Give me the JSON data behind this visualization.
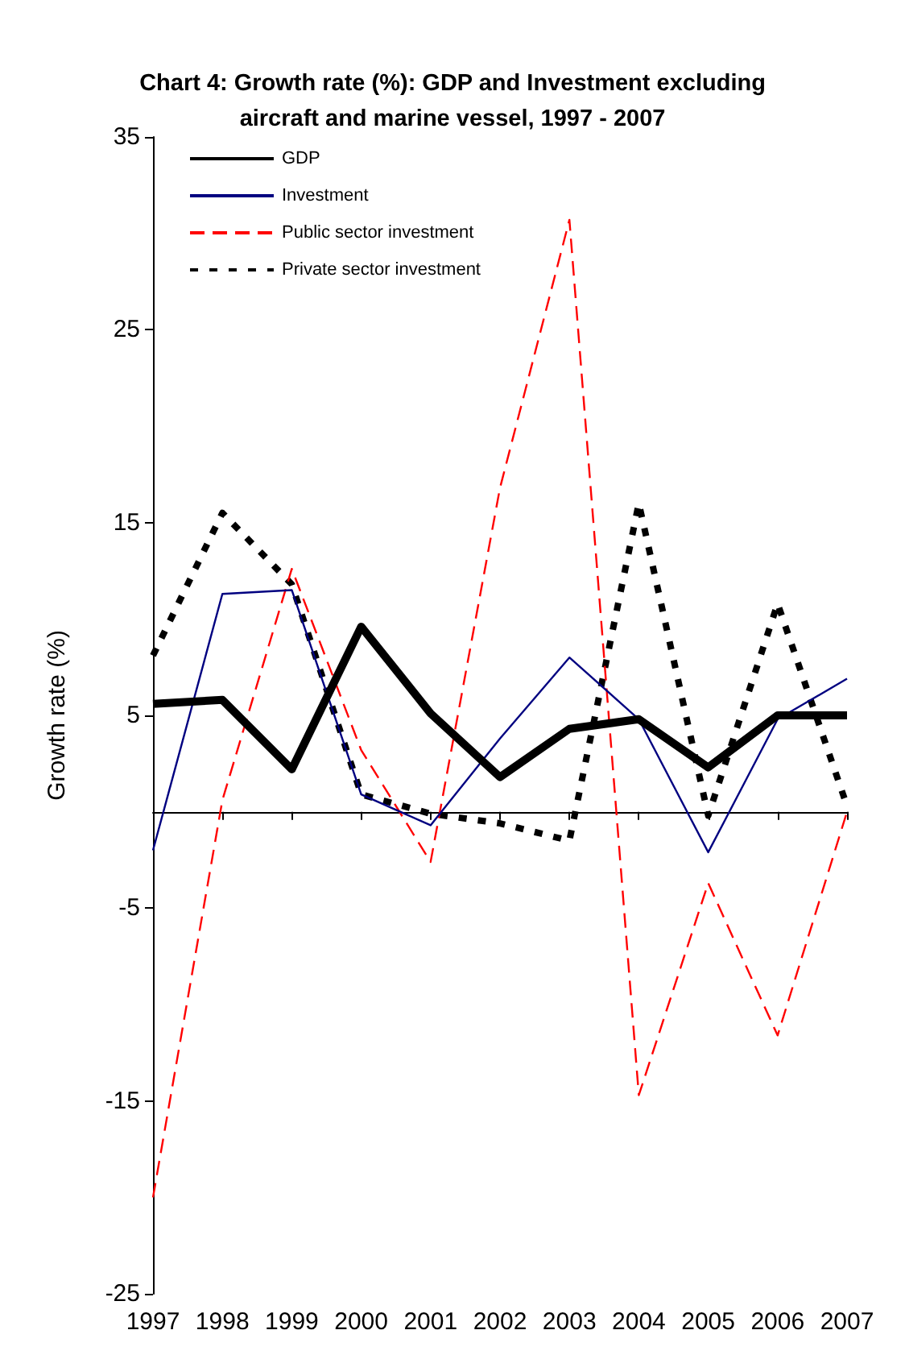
{
  "chart_data": {
    "type": "line",
    "title": "Chart 4: Growth rate (%): GDP and Investment excluding\naircraft and marine vessel, 1997 - 2007",
    "ylabel": "Growth rate (%)",
    "categories": [
      "1997",
      "1998",
      "1999",
      "2000",
      "2001",
      "2002",
      "2003",
      "2004",
      "2005",
      "2006",
      "2007"
    ],
    "series": [
      {
        "name": "GDP",
        "color": "#000000",
        "line_style": "solid",
        "values": [
          5.6,
          5.8,
          2.2,
          9.6,
          5.1,
          1.8,
          4.3,
          4.8,
          2.3,
          5.0,
          5.0
        ]
      },
      {
        "name": "Investment",
        "color": "#000080",
        "line_style": "solid",
        "values": [
          -2.0,
          11.3,
          11.5,
          0.9,
          -0.7,
          3.8,
          8.0,
          4.8,
          -2.1,
          4.8,
          6.9
        ]
      },
      {
        "name": "Public sector investment",
        "color": "#ff0000",
        "line_style": "dashed",
        "values": [
          -20.0,
          0.6,
          12.6,
          3.2,
          -2.6,
          16.8,
          30.7,
          -14.7,
          -3.7,
          -11.6,
          0.0
        ]
      },
      {
        "name": "Private sector investment",
        "color": "#000000",
        "line_style": "dotted",
        "values": [
          8.1,
          15.5,
          11.8,
          0.9,
          -0.1,
          -0.6,
          -1.5,
          16.0,
          -0.2,
          10.8,
          0.3
        ]
      }
    ],
    "ylim": [
      -25,
      35
    ],
    "yticks": [
      -25,
      -15,
      -5,
      5,
      15,
      25,
      35
    ],
    "grid": false,
    "legend": "top left",
    "marker": "none"
  }
}
